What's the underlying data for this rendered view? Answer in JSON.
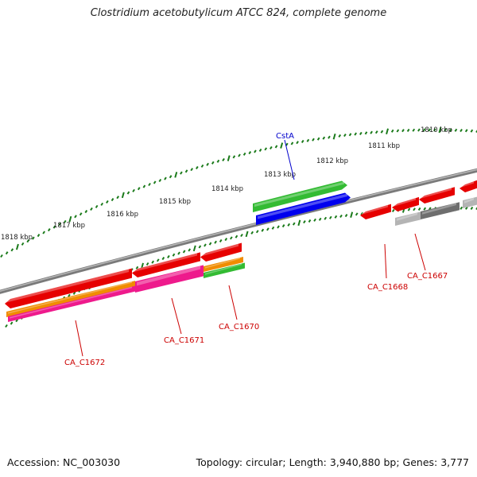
{
  "title": "Clostridium acetobutylicum ATCC 824, complete genome",
  "footer": {
    "accession": "Accession: NC_003030",
    "summary": "Topology: circular; Length: 3,940,880 bp; Genes: 3,777"
  },
  "ruler_labels": [
    "1810 kbp",
    "1811 kbp",
    "1812 kbp",
    "1813 kbp",
    "1814 kbp",
    "1815 kbp",
    "1816 kbp",
    "1817 kbp",
    "1818 kbp"
  ],
  "gene_labels": {
    "csta": "CstA",
    "ca_c1667": "CA_C1667",
    "ca_c1668": "CA_C1668",
    "ca_c1670": "CA_C1670",
    "ca_c1671": "CA_C1671",
    "ca_c1672": "CA_C1672"
  },
  "colors": {
    "backbone": "#808080",
    "tick": "#1a7a1a",
    "gene_red": "#e60000",
    "gene_green": "#33bb33",
    "gene_blue": "#0000ee",
    "gene_magenta": "#ee1a8c",
    "gene_orange": "#f08c00",
    "gene_grey": "#6e6e6e",
    "gene_lightgrey": "#b4b4b4",
    "label_red": "#cc0000",
    "label_blue": "#0000cc"
  }
}
